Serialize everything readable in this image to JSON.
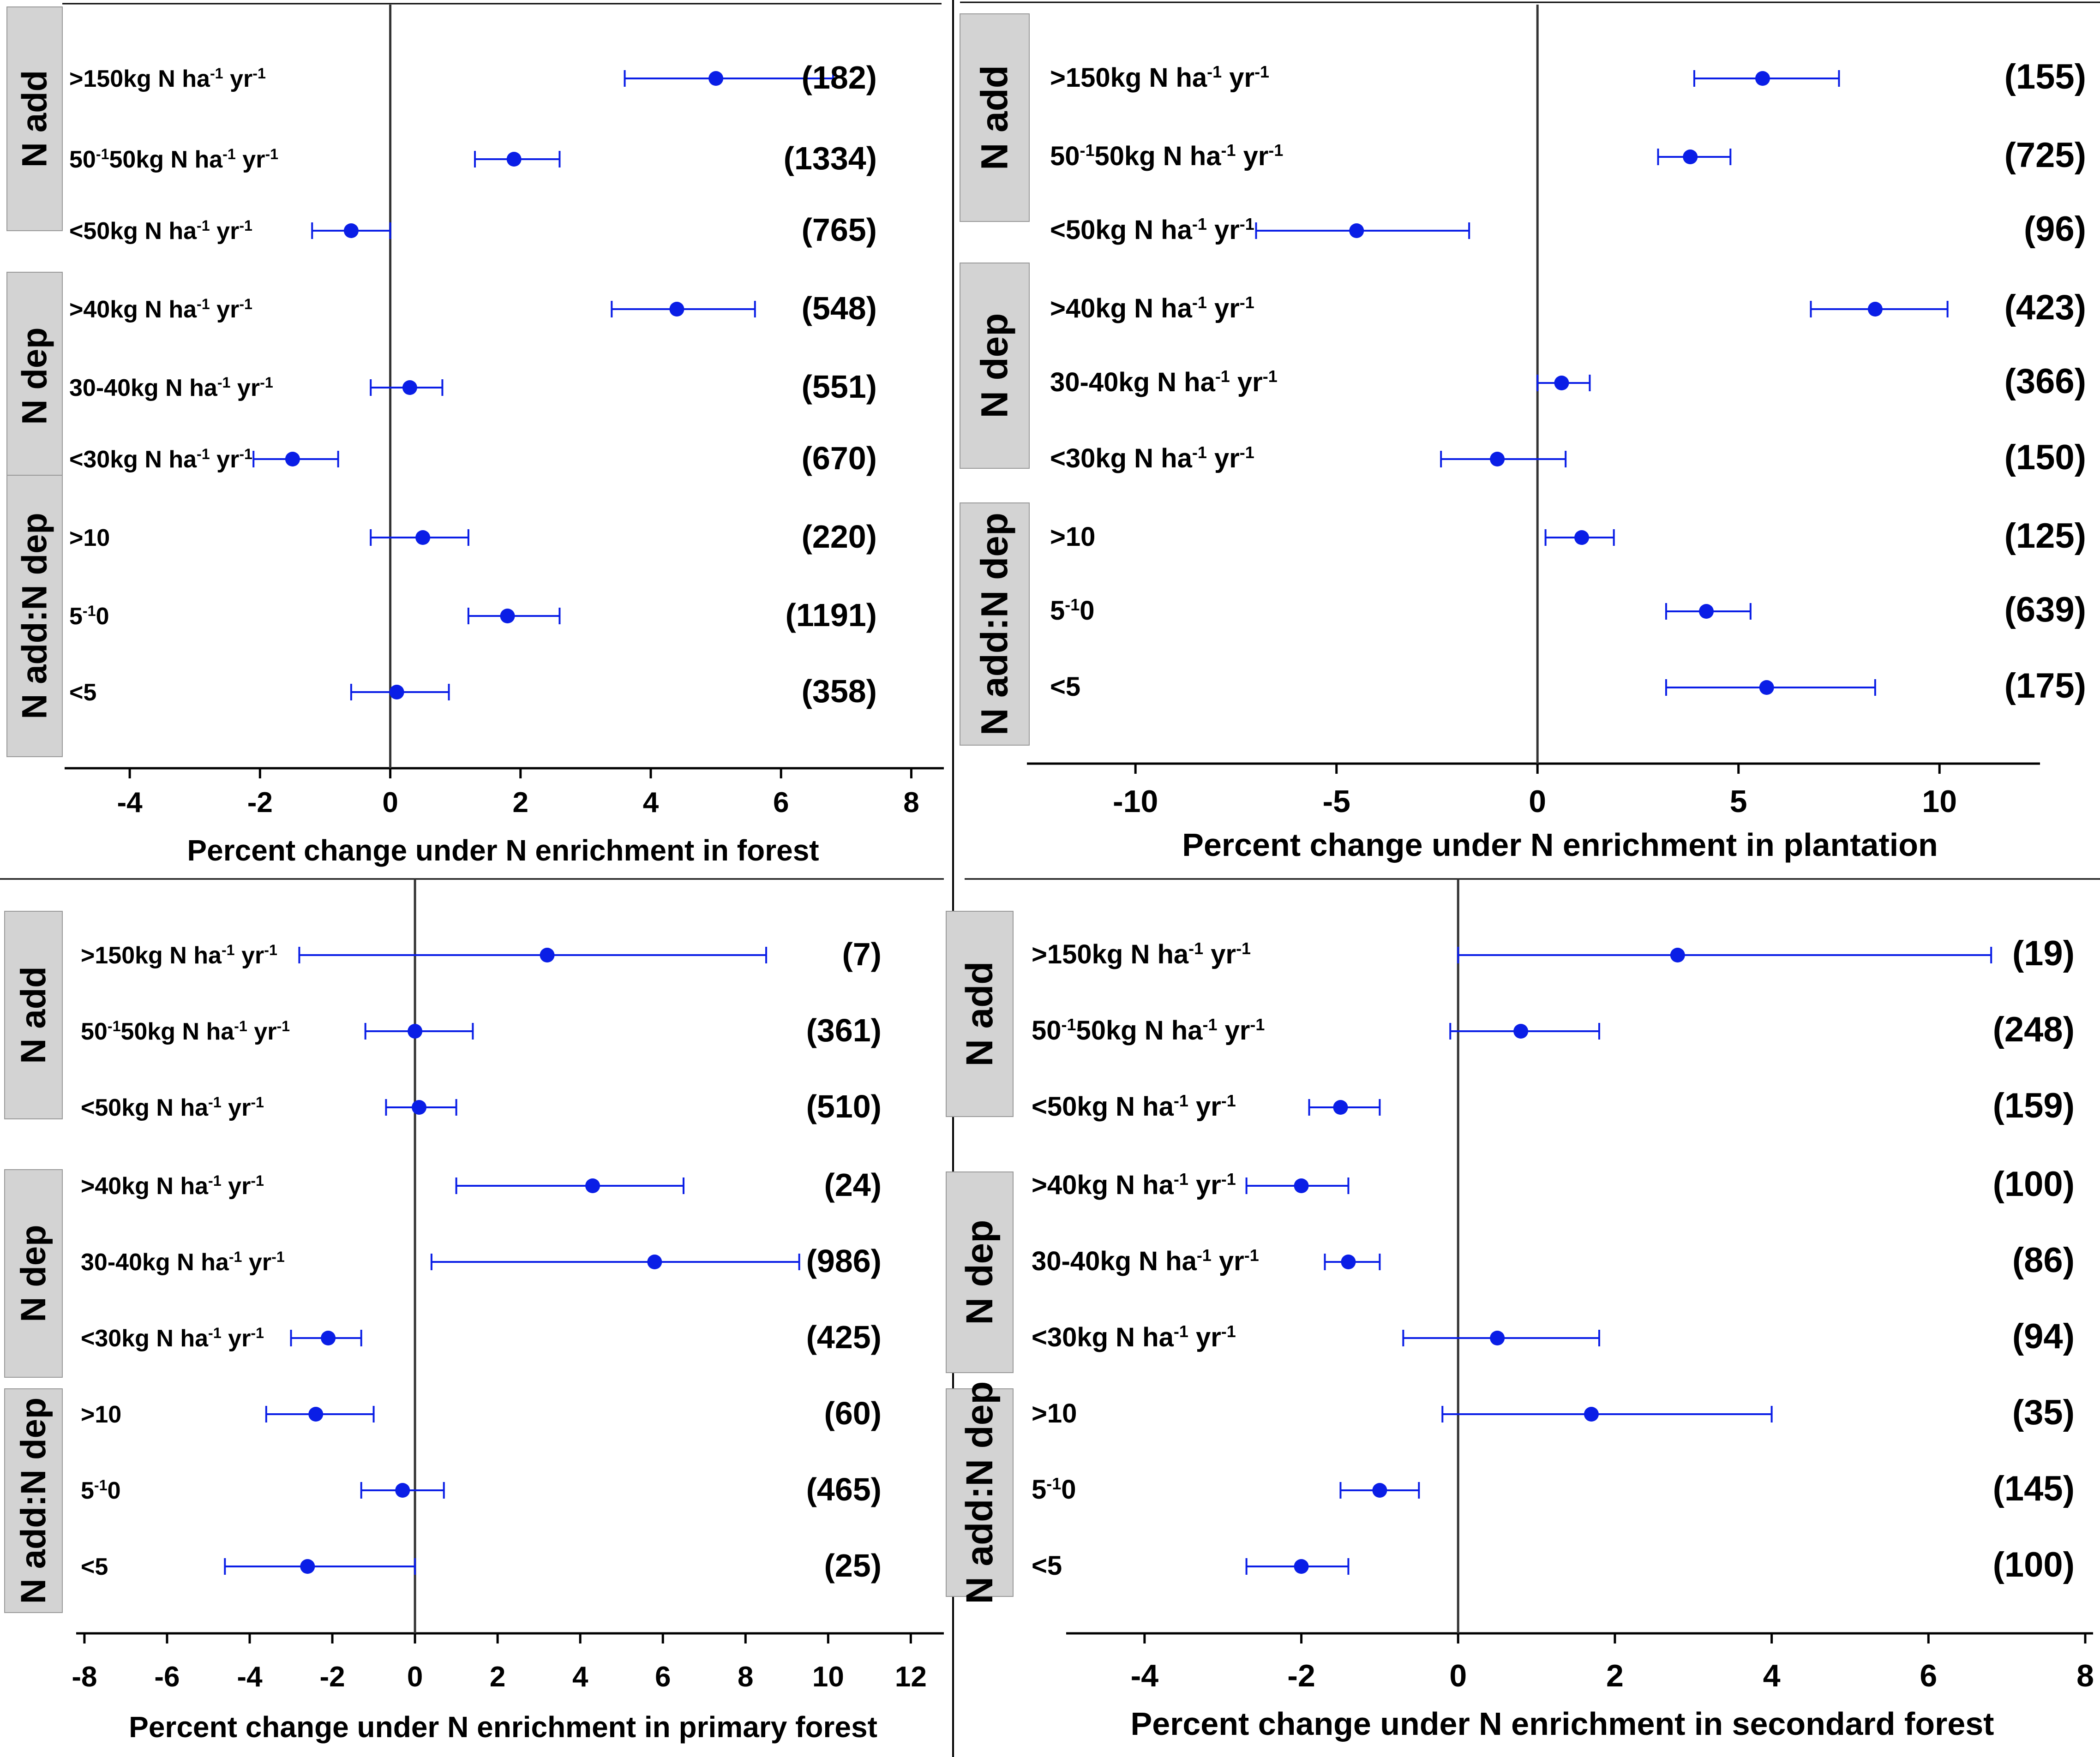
{
  "colors": {
    "marker": "#0a1ee6",
    "box": "#d3d3d3",
    "axis": "#000000",
    "zero_line": "#333333"
  },
  "chart_data": [
    {
      "type": "forest-plot",
      "xlabel": "Percent change under N enrichment in forest",
      "xlim": [
        -5,
        8.5
      ],
      "xticks": [
        -4,
        -2,
        0,
        2,
        4,
        6,
        8
      ],
      "groups": [
        {
          "name": "N add",
          "rows": [
            {
              "label": ">150kg N ha-1 yr-1",
              "n": "(182)",
              "mean": 5.0,
              "lo": 3.6,
              "hi": 6.8
            },
            {
              "label": "50-150kg N ha-1 yr-1",
              "n": "(1334)",
              "mean": 1.9,
              "lo": 1.3,
              "hi": 2.6
            },
            {
              "label": "<50kg N ha-1 yr-1",
              "n": "(765)",
              "mean": -0.6,
              "lo": -1.2,
              "hi": 0.0
            }
          ]
        },
        {
          "name": "N dep",
          "rows": [
            {
              "label": ">40kg N ha-1 yr-1",
              "n": "(548)",
              "mean": 4.4,
              "lo": 3.4,
              "hi": 5.6
            },
            {
              "label": "30-40kg N ha-1 yr-1",
              "n": "(551)",
              "mean": 0.3,
              "lo": -0.3,
              "hi": 0.8
            },
            {
              "label": "<30kg N ha-1 yr-1",
              "n": "(670)",
              "mean": -1.5,
              "lo": -2.1,
              "hi": -0.8
            }
          ]
        },
        {
          "name": "N add:N dep",
          "rows": [
            {
              "label": ">10",
              "n": "(220)",
              "mean": 0.5,
              "lo": -0.3,
              "hi": 1.2
            },
            {
              "label": "5-10",
              "n": "(1191)",
              "mean": 1.8,
              "lo": 1.2,
              "hi": 2.6
            },
            {
              "label": "<5",
              "n": "(358)",
              "mean": 0.1,
              "lo": -0.6,
              "hi": 0.9
            }
          ]
        }
      ]
    },
    {
      "type": "forest-plot",
      "xlabel": "Percent change under N enrichment in plantation",
      "xlim": [
        -12.7,
        12.5
      ],
      "xticks": [
        -10,
        -5,
        0,
        5,
        10
      ],
      "groups": [
        {
          "name": "N add",
          "rows": [
            {
              "label": ">150kg N ha-1 yr-1",
              "n": "(155)",
              "mean": 5.6,
              "lo": 3.9,
              "hi": 7.5
            },
            {
              "label": "50-150kg N ha-1 yr-1",
              "n": "(725)",
              "mean": 3.8,
              "lo": 3.0,
              "hi": 4.8
            },
            {
              "label": "<50kg N ha-1 yr-1",
              "n": "(96)",
              "mean": -4.5,
              "lo": -7.0,
              "hi": -1.7
            }
          ]
        },
        {
          "name": "N dep",
          "rows": [
            {
              "label": ">40kg N ha-1 yr-1",
              "n": "(423)",
              "mean": 8.4,
              "lo": 6.8,
              "hi": 10.2
            },
            {
              "label": "30-40kg N ha-1 yr-1",
              "n": "(366)",
              "mean": 0.6,
              "lo": 0.0,
              "hi": 1.3
            },
            {
              "label": "<30kg N ha-1 yr-1",
              "n": "(150)",
              "mean": -1.0,
              "lo": -2.4,
              "hi": 0.7
            }
          ]
        },
        {
          "name": "N add:N dep",
          "rows": [
            {
              "label": ">10",
              "n": "(125)",
              "mean": 1.1,
              "lo": 0.2,
              "hi": 1.9
            },
            {
              "label": "5-10",
              "n": "(639)",
              "mean": 4.2,
              "lo": 3.2,
              "hi": 5.3
            },
            {
              "label": "<5",
              "n": "(175)",
              "mean": 5.7,
              "lo": 3.2,
              "hi": 8.4
            }
          ]
        }
      ]
    },
    {
      "type": "forest-plot",
      "xlabel": "Percent change under N enrichment in primary forest",
      "xlim": [
        -8.2,
        12.8
      ],
      "xticks": [
        -8,
        -6,
        -4,
        -2,
        0,
        2,
        4,
        6,
        8,
        10,
        12
      ],
      "groups": [
        {
          "name": "N add",
          "rows": [
            {
              "label": ">150kg N ha-1 yr-1",
              "n": "(7)",
              "mean": 3.2,
              "lo": -2.8,
              "hi": 8.5
            },
            {
              "label": "50-150kg N ha-1 yr-1",
              "n": "(361)",
              "mean": 0.0,
              "lo": -1.2,
              "hi": 1.4
            },
            {
              "label": "<50kg N ha-1 yr-1",
              "n": "(510)",
              "mean": 0.1,
              "lo": -0.7,
              "hi": 1.0
            }
          ]
        },
        {
          "name": "N dep",
          "rows": [
            {
              "label": ">40kg N ha-1 yr-1",
              "n": "(24)",
              "mean": 4.3,
              "lo": 1.0,
              "hi": 6.5
            },
            {
              "label": "30-40kg N ha-1 yr-1",
              "n": "(986)",
              "mean": 5.8,
              "lo": 0.4,
              "hi": 9.3
            },
            {
              "label": "<30kg N ha-1 yr-1",
              "n": "(425)",
              "mean": -2.1,
              "lo": -3.0,
              "hi": -1.3
            }
          ]
        },
        {
          "name": "N add:N dep",
          "rows": [
            {
              "label": ">10",
              "n": "(60)",
              "mean": -2.4,
              "lo": -3.6,
              "hi": -1.0
            },
            {
              "label": "5-10",
              "n": "(465)",
              "mean": -0.3,
              "lo": -1.3,
              "hi": 0.7
            },
            {
              "label": "<5",
              "n": "(25)",
              "mean": -2.6,
              "lo": -4.6,
              "hi": 0.0
            }
          ]
        }
      ]
    },
    {
      "type": "forest-plot",
      "xlabel": "Percent change under N enrichment in secondard forest",
      "xlim": [
        -5.0,
        8.1
      ],
      "xticks": [
        -4,
        -2,
        0,
        2,
        4,
        6,
        8
      ],
      "groups": [
        {
          "name": "N add",
          "rows": [
            {
              "label": ">150kg N ha-1 yr-1",
              "n": "(19)",
              "mean": 2.8,
              "lo": 0.0,
              "hi": 6.8
            },
            {
              "label": "50-150kg N ha-1 yr-1",
              "n": "(248)",
              "mean": 0.8,
              "lo": -0.1,
              "hi": 1.8
            },
            {
              "label": "<50kg N ha-1 yr-1",
              "n": "(159)",
              "mean": -1.5,
              "lo": -1.9,
              "hi": -1.0
            }
          ]
        },
        {
          "name": "N dep",
          "rows": [
            {
              "label": ">40kg N ha-1 yr-1",
              "n": "(100)",
              "mean": -2.0,
              "lo": -2.7,
              "hi": -1.4
            },
            {
              "label": "30-40kg N ha-1 yr-1",
              "n": "(86)",
              "mean": -1.4,
              "lo": -1.7,
              "hi": -1.0
            },
            {
              "label": "<30kg N ha-1 yr-1",
              "n": "(94)",
              "mean": 0.5,
              "lo": -0.7,
              "hi": 1.8
            }
          ]
        },
        {
          "name": "N add:N dep",
          "rows": [
            {
              "label": ">10",
              "n": "(35)",
              "mean": 1.7,
              "lo": -0.2,
              "hi": 4.0
            },
            {
              "label": "5-10",
              "n": "(145)",
              "mean": -1.0,
              "lo": -1.5,
              "hi": -0.5
            },
            {
              "label": "<5",
              "n": "(100)",
              "mean": -2.0,
              "lo": -2.7,
              "hi": -1.4
            }
          ]
        }
      ]
    }
  ]
}
